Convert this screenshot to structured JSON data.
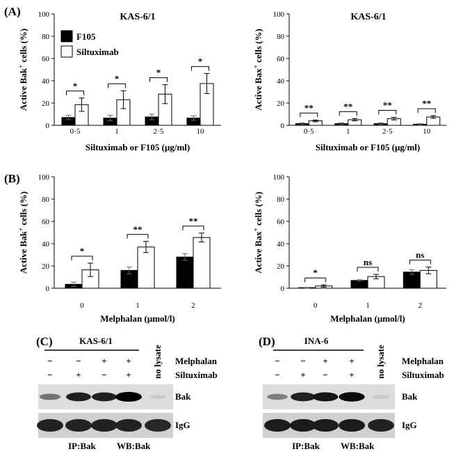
{
  "panel_labels": [
    "(A)",
    "(B)",
    "(C)",
    "(D)"
  ],
  "legend": {
    "entries": [
      {
        "name": "F105",
        "color": "#000000"
      },
      {
        "name": "Siltuximab",
        "color": "#ffffff"
      }
    ]
  },
  "chart_data": [
    {
      "id": "A-left",
      "type": "bar",
      "panel": "(A)",
      "title": "KAS-6/1",
      "ylabel_main": "Active Bak",
      "ylabel_sup": "+",
      "ylabel_tail": " cells (%)",
      "xlabel": "Siltuximab or F105 (μg/ml)",
      "ylim": [
        0,
        100
      ],
      "yticks": [
        0,
        20,
        40,
        60,
        80,
        100
      ],
      "categories": [
        "0·5",
        "1",
        "2·5",
        "10"
      ],
      "series": [
        {
          "name": "F105",
          "values": [
            7,
            6.5,
            7.5,
            6.5
          ],
          "errors": [
            2,
            2.5,
            2.5,
            2
          ]
        },
        {
          "name": "Siltuximab",
          "values": [
            18.5,
            23,
            28,
            37.5
          ],
          "errors": [
            6,
            8,
            8.5,
            9
          ]
        }
      ],
      "significance": [
        "*",
        "*",
        "*",
        "*"
      ]
    },
    {
      "id": "A-right",
      "type": "bar",
      "panel": "(A)",
      "title": "KAS-6/1",
      "ylabel_main": "Active Bax",
      "ylabel_sup": "+",
      "ylabel_tail": " cells (%)",
      "xlabel": "Siltuximab or F105 (μg/ml)",
      "ylim": [
        0,
        100
      ],
      "yticks": [
        0,
        20,
        40,
        60,
        80,
        100
      ],
      "categories": [
        "0·5",
        "1",
        "2·5",
        "10"
      ],
      "series": [
        {
          "name": "F105",
          "values": [
            1.5,
            1.5,
            1.5,
            1
          ],
          "errors": [
            0.8,
            0.8,
            0.8,
            0.5
          ]
        },
        {
          "name": "Siltuximab",
          "values": [
            4,
            5,
            6,
            7.5
          ],
          "errors": [
            0.8,
            1,
            1.2,
            1.2
          ]
        }
      ],
      "significance": [
        "**",
        "**",
        "**",
        "**"
      ]
    },
    {
      "id": "B-left",
      "type": "bar",
      "panel": "(B)",
      "title": "",
      "ylabel_main": "Active Bak",
      "ylabel_sup": "+",
      "ylabel_tail": " cells (%)",
      "xlabel": "Melphalan (μmol/l)",
      "ylim": [
        0,
        100
      ],
      "yticks": [
        0,
        20,
        40,
        60,
        80,
        100
      ],
      "categories": [
        "0",
        "1",
        "2"
      ],
      "series": [
        {
          "name": "F105",
          "values": [
            3.5,
            16,
            28
          ],
          "errors": [
            2,
            3,
            3
          ]
        },
        {
          "name": "Siltuximab",
          "values": [
            16.5,
            37,
            45.5
          ],
          "errors": [
            6,
            5,
            4
          ]
        }
      ],
      "significance": [
        "*",
        "**",
        "**"
      ]
    },
    {
      "id": "B-right",
      "type": "bar",
      "panel": "(B)",
      "title": "",
      "ylabel_main": "Active Bax",
      "ylabel_sup": "+",
      "ylabel_tail": " cells (%)",
      "xlabel": "Melphalan (μmol/l)",
      "ylim": [
        0,
        100
      ],
      "yticks": [
        0,
        20,
        40,
        60,
        80,
        100
      ],
      "categories": [
        "0",
        "1",
        "2"
      ],
      "series": [
        {
          "name": "F105",
          "values": [
            0.5,
            7,
            14.5
          ],
          "errors": [
            0.3,
            0.5,
            2
          ]
        },
        {
          "name": "Siltuximab",
          "values": [
            2,
            10.5,
            16
          ],
          "errors": [
            1,
            2,
            3
          ]
        }
      ],
      "significance": [
        "*",
        "ns",
        "ns"
      ]
    }
  ],
  "blots": [
    {
      "panel": "(C)",
      "cell_line": "KAS-6/1",
      "melphalan_label": "Melphalan",
      "siltuximab_label": "Siltuximab",
      "melphalan": [
        "−",
        "−",
        "+",
        "+"
      ],
      "siltuximab": [
        "−",
        "+",
        "−",
        "+"
      ],
      "no_lysate_label": "no lysate",
      "band_labels": [
        "Bak",
        "IgG"
      ],
      "bak_intensity": [
        0.45,
        0.85,
        0.85,
        1.0,
        0.05
      ],
      "igg_intensity": [
        0.9,
        0.9,
        0.9,
        0.9,
        0.85
      ],
      "footer_ip": "IP:Bak",
      "footer_wb": "WB:Bak"
    },
    {
      "panel": "(D)",
      "cell_line": "INA-6",
      "melphalan_label": "Melphalan",
      "siltuximab_label": "Siltuximab",
      "melphalan": [
        "−",
        "−",
        "+",
        "+"
      ],
      "siltuximab": [
        "−",
        "+",
        "−",
        "+"
      ],
      "no_lysate_label": "no lysate",
      "band_labels": [
        "Bak",
        "IgG"
      ],
      "bak_intensity": [
        0.4,
        0.85,
        0.9,
        0.95,
        0.05
      ],
      "igg_intensity": [
        0.95,
        0.95,
        0.95,
        0.95,
        0.9
      ],
      "footer_ip": "IP:Bak",
      "footer_wb": "WB:Bak"
    }
  ]
}
